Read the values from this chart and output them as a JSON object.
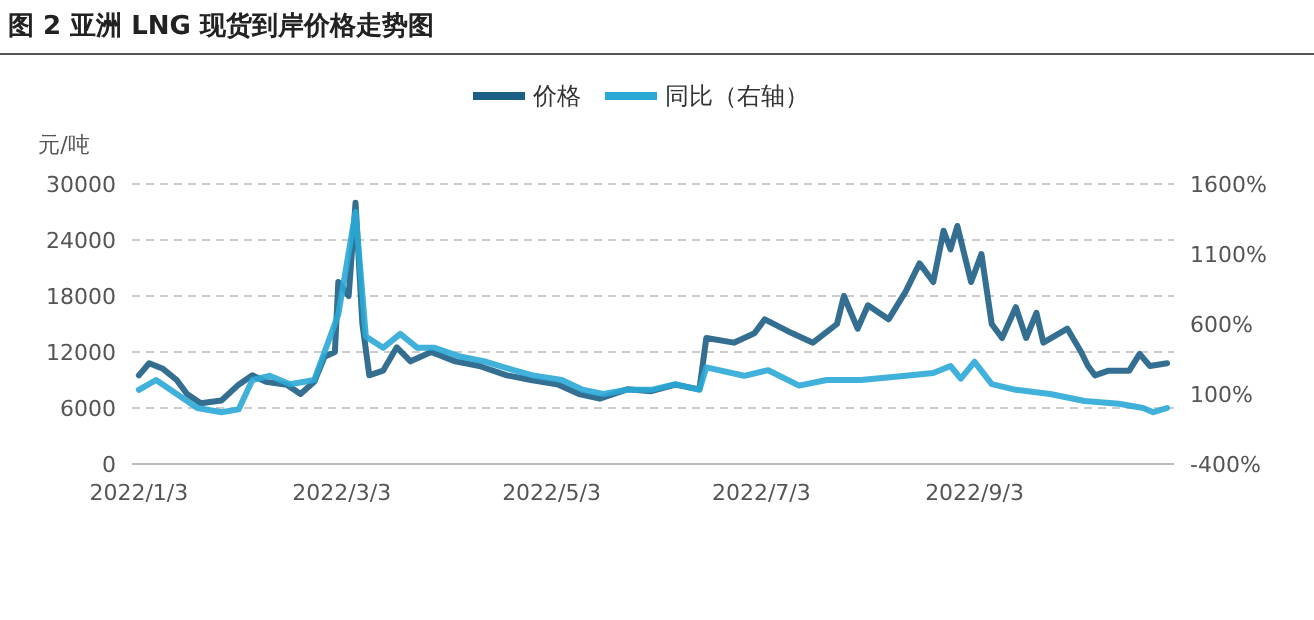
{
  "chart_data": {
    "type": "line",
    "title": "图 2 亚洲 LNG 现货到岸价格走势图",
    "ylabel": "元/吨",
    "xlim": [
      "2022-01-01",
      "2022-10-31"
    ],
    "xticks": [
      {
        "value": "2022-01-03",
        "label": "2022/1/3"
      },
      {
        "value": "2022-03-03",
        "label": "2022/3/3"
      },
      {
        "value": "2022-05-03",
        "label": "2022/5/3"
      },
      {
        "value": "2022-07-03",
        "label": "2022/7/3"
      },
      {
        "value": "2022-09-03",
        "label": "2022/9/3"
      }
    ],
    "ylim": [
      0,
      30000
    ],
    "yticks": [
      0,
      6000,
      12000,
      18000,
      24000,
      30000
    ],
    "y2lim": [
      -400,
      1600
    ],
    "y2ticks": [
      {
        "value": -400,
        "label": "-400%"
      },
      {
        "value": 100,
        "label": "100%"
      },
      {
        "value": 600,
        "label": "600%"
      },
      {
        "value": 1100,
        "label": "1100%"
      },
      {
        "value": 1600,
        "label": "1600%"
      }
    ],
    "grid": "y",
    "legend": "top",
    "marker": "none",
    "line_style": "solid",
    "series": [
      {
        "name": "价格",
        "color": "#1e5f86",
        "x": [
          "2022-01-03",
          "2022-01-06",
          "2022-01-10",
          "2022-01-14",
          "2022-01-17",
          "2022-01-21",
          "2022-01-27",
          "2022-02-01",
          "2022-02-05",
          "2022-02-09",
          "2022-02-15",
          "2022-02-19",
          "2022-02-23",
          "2022-02-26",
          "2022-03-01",
          "2022-03-02",
          "2022-03-05",
          "2022-03-07",
          "2022-03-09",
          "2022-03-11",
          "2022-03-15",
          "2022-03-19",
          "2022-03-23",
          "2022-03-29",
          "2022-04-05",
          "2022-04-12",
          "2022-04-20",
          "2022-04-27",
          "2022-05-05",
          "2022-05-11",
          "2022-05-17",
          "2022-05-25",
          "2022-06-01",
          "2022-06-08",
          "2022-06-15",
          "2022-06-17",
          "2022-06-25",
          "2022-07-01",
          "2022-07-04",
          "2022-07-12",
          "2022-07-18",
          "2022-07-25",
          "2022-07-27",
          "2022-07-31",
          "2022-08-03",
          "2022-08-09",
          "2022-08-14",
          "2022-08-18",
          "2022-08-22",
          "2022-08-25",
          "2022-08-27",
          "2022-08-29",
          "2022-09-02",
          "2022-09-05",
          "2022-09-08",
          "2022-09-11",
          "2022-09-15",
          "2022-09-18",
          "2022-09-21",
          "2022-09-23",
          "2022-09-30",
          "2022-10-04",
          "2022-10-06",
          "2022-10-08",
          "2022-10-12",
          "2022-10-18",
          "2022-10-21",
          "2022-10-24",
          "2022-10-29"
        ],
        "values": [
          9500,
          10800,
          10200,
          9000,
          7500,
          6500,
          6800,
          8500,
          9500,
          8800,
          8500,
          7500,
          8800,
          11500,
          12000,
          19500,
          18000,
          28000,
          15000,
          9500,
          10000,
          12500,
          11000,
          12000,
          11000,
          10500,
          9500,
          9000,
          8500,
          7500,
          7000,
          8000,
          7800,
          8500,
          8000,
          13500,
          13000,
          14000,
          15500,
          14000,
          13000,
          15000,
          18000,
          14500,
          17000,
          15500,
          18500,
          21500,
          19500,
          25000,
          23000,
          25500,
          19500,
          22500,
          15000,
          13500,
          16800,
          13500,
          16200,
          13000,
          14500,
          12000,
          10500,
          9500,
          10000,
          10000,
          11800,
          10500,
          10800
        ]
      },
      {
        "name": "同比（右轴）",
        "color": "#2aa8d6",
        "axis": "y2",
        "x": [
          "2022-01-03",
          "2022-01-08",
          "2022-01-14",
          "2022-01-20",
          "2022-01-27",
          "2022-02-01",
          "2022-02-05",
          "2022-02-10",
          "2022-02-16",
          "2022-02-23",
          "2022-02-26",
          "2022-03-02",
          "2022-03-07",
          "2022-03-10",
          "2022-03-15",
          "2022-03-20",
          "2022-03-25",
          "2022-03-30",
          "2022-04-06",
          "2022-04-14",
          "2022-04-22",
          "2022-04-28",
          "2022-05-06",
          "2022-05-12",
          "2022-05-18",
          "2022-05-25",
          "2022-06-01",
          "2022-06-08",
          "2022-06-15",
          "2022-06-17",
          "2022-06-28",
          "2022-07-05",
          "2022-07-14",
          "2022-07-22",
          "2022-08-01",
          "2022-08-14",
          "2022-08-22",
          "2022-08-27",
          "2022-08-30",
          "2022-09-03",
          "2022-09-08",
          "2022-09-15",
          "2022-09-25",
          "2022-10-05",
          "2022-10-15",
          "2022-10-22",
          "2022-10-25",
          "2022-10-29"
        ],
        "values": [
          130,
          200,
          100,
          0,
          -30,
          -10,
          200,
          230,
          170,
          200,
          400,
          670,
          1400,
          510,
          430,
          530,
          430,
          430,
          370,
          330,
          270,
          230,
          200,
          130,
          100,
          130,
          130,
          170,
          130,
          290,
          230,
          270,
          160,
          200,
          200,
          230,
          250,
          300,
          210,
          330,
          170,
          130,
          100,
          50,
          30,
          0,
          -30,
          0
        ]
      }
    ]
  }
}
